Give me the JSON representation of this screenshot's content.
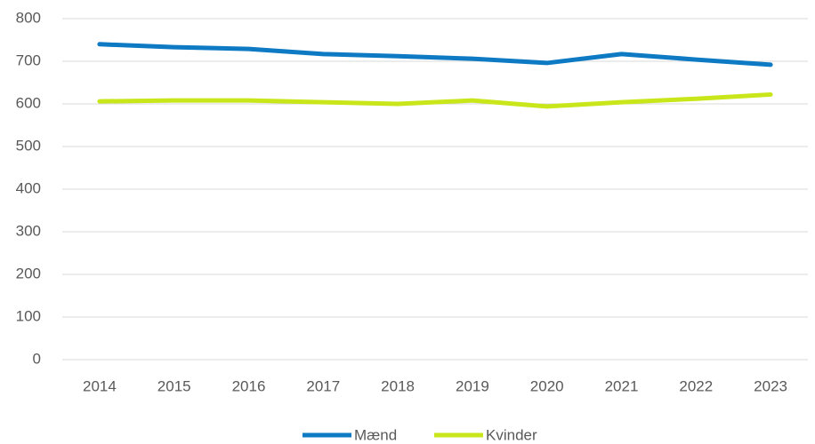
{
  "chart_data": {
    "type": "line",
    "categories": [
      "2014",
      "2015",
      "2016",
      "2017",
      "2018",
      "2019",
      "2020",
      "2021",
      "2022",
      "2023"
    ],
    "series": [
      {
        "name": "Mænd",
        "color": "#0e7ac4",
        "values": [
          740,
          733,
          729,
          717,
          712,
          706,
          696,
          717,
          704,
          692
        ]
      },
      {
        "name": "Kvinder",
        "color": "#c8e619",
        "values": [
          606,
          608,
          608,
          604,
          600,
          608,
          594,
          604,
          612,
          622
        ]
      }
    ],
    "ylim": [
      0,
      800
    ],
    "yticks": [
      0,
      100,
      200,
      300,
      400,
      500,
      600,
      700,
      800
    ],
    "grid": true,
    "legend": "bottom"
  }
}
